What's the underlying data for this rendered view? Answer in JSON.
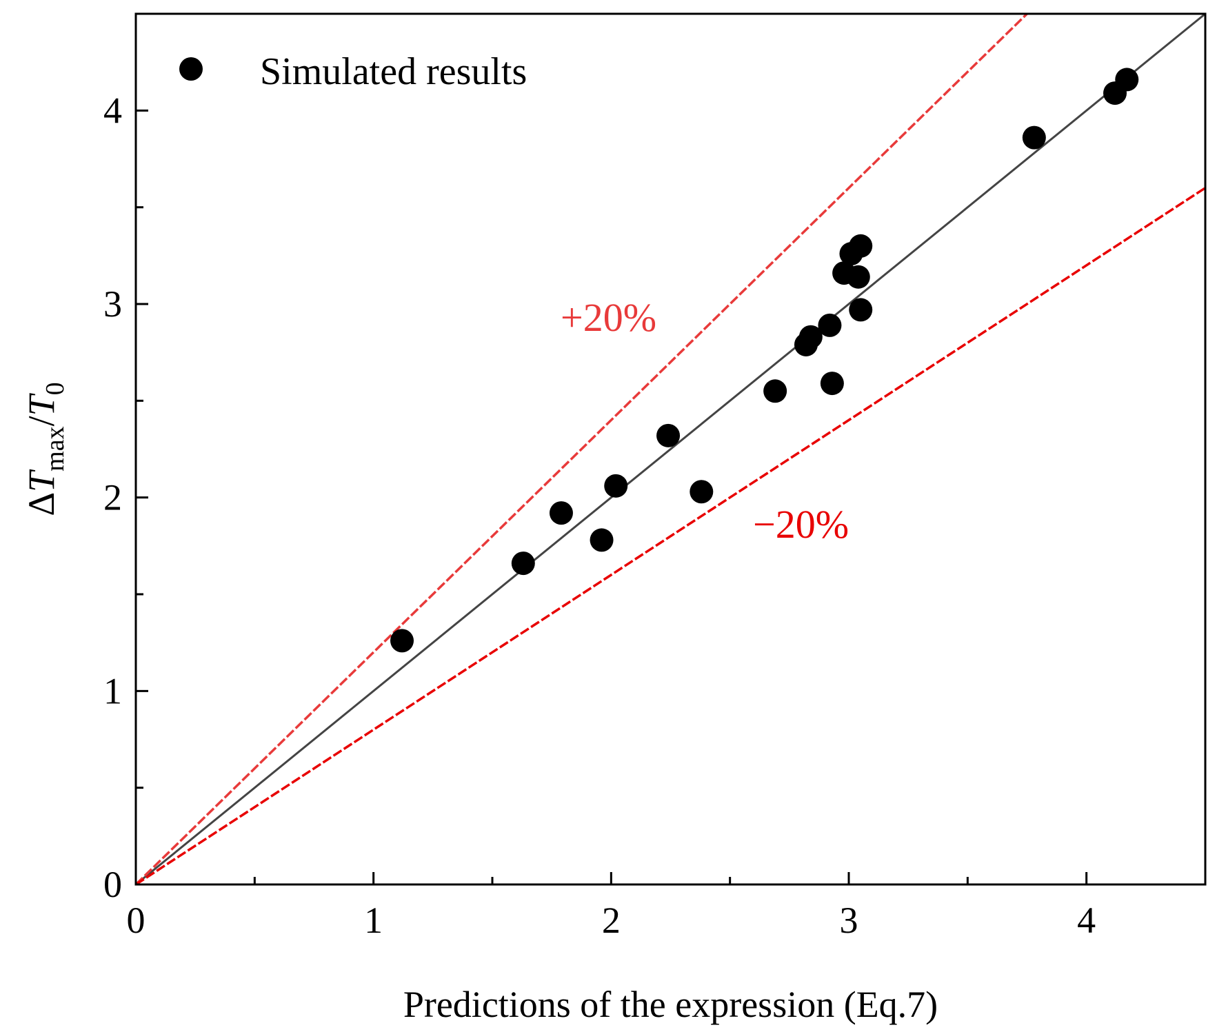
{
  "chart_data": {
    "type": "scatter",
    "xlabel": "Predictions of the expression (Eq.7)",
    "ylabel": {
      "delta": "Δ",
      "var": "T",
      "sub": "max",
      "slash": "/",
      "var2": "T",
      "sub2": "0"
    },
    "xlim": [
      0,
      4.5
    ],
    "ylim": [
      0,
      4.5
    ],
    "x_ticks": [
      "0",
      "1",
      "2",
      "3",
      "4"
    ],
    "y_ticks": [
      "0",
      "1",
      "2",
      "3",
      "4"
    ],
    "grid": false,
    "legend": {
      "position": "top-left",
      "entries": [
        "Simulated results"
      ]
    },
    "series": [
      {
        "name": "Simulated results",
        "marker": "circle",
        "color": "#000000",
        "points": [
          [
            1.12,
            1.26
          ],
          [
            1.63,
            1.66
          ],
          [
            1.79,
            1.92
          ],
          [
            1.96,
            1.78
          ],
          [
            2.02,
            2.06
          ],
          [
            2.24,
            2.32
          ],
          [
            2.38,
            2.03
          ],
          [
            2.69,
            2.55
          ],
          [
            2.82,
            2.79
          ],
          [
            2.84,
            2.83
          ],
          [
            2.92,
            2.89
          ],
          [
            2.93,
            2.59
          ],
          [
            2.98,
            3.16
          ],
          [
            3.01,
            3.26
          ],
          [
            3.04,
            3.14
          ],
          [
            3.05,
            3.3
          ],
          [
            3.05,
            2.97
          ],
          [
            3.78,
            3.86
          ],
          [
            4.12,
            4.09
          ],
          [
            4.17,
            4.16
          ]
        ]
      }
    ],
    "reference_lines": [
      {
        "slope": 1.0,
        "color": "#444444",
        "style": "solid"
      },
      {
        "slope": 1.2,
        "color": "#e83a3a",
        "style": "dashed",
        "label": "+20%"
      },
      {
        "slope": 0.8,
        "color": "#e80000",
        "style": "dashed",
        "label": "−20%"
      }
    ]
  }
}
